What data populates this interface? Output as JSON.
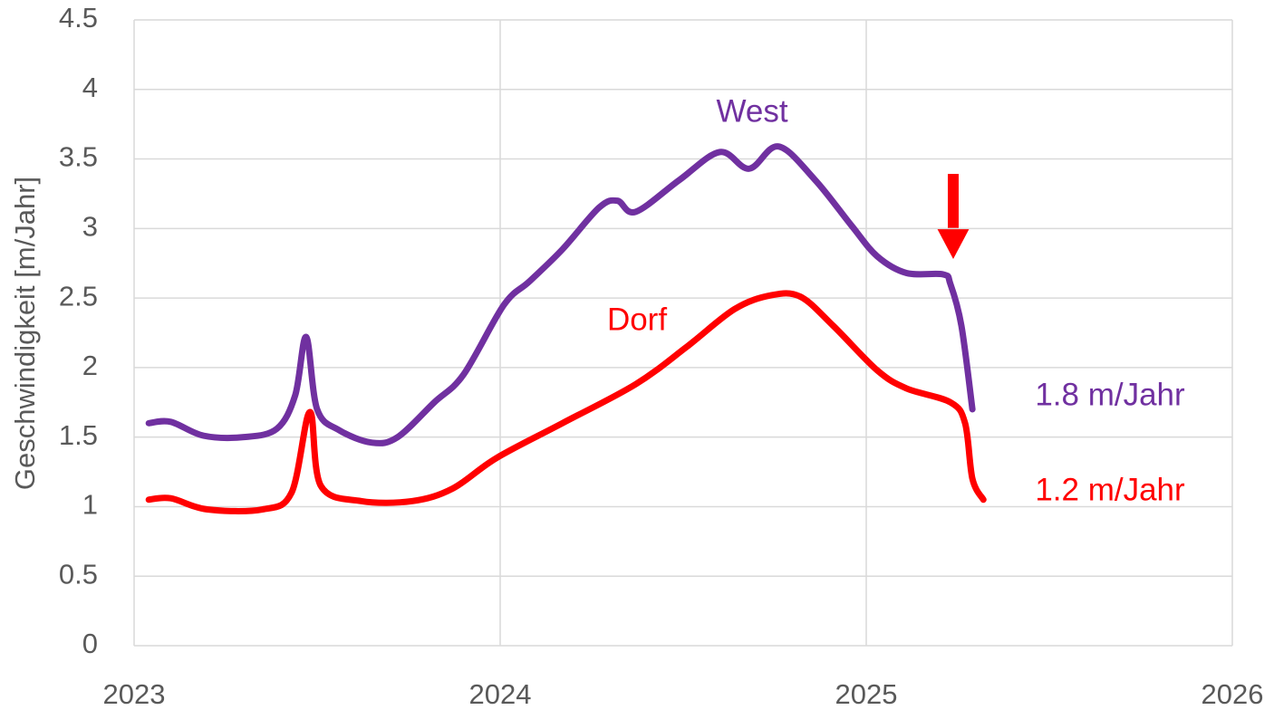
{
  "chart_data": {
    "type": "line",
    "y_label": "Geschwindigkeit [m/Jahr]",
    "xlim": [
      2023,
      2026
    ],
    "xticks": [
      2023,
      2024,
      2025,
      2026
    ],
    "ylim": [
      0,
      4.5
    ],
    "yticks": [
      0,
      0.5,
      1,
      1.5,
      2,
      2.5,
      3,
      3.5,
      4,
      4.5
    ],
    "grid": true,
    "series": [
      {
        "name": "West",
        "color": "#7030a0",
        "x": [
          2023.04,
          2023.1,
          2023.19,
          2023.3,
          2023.39,
          2023.44,
          2023.47,
          2023.5,
          2023.56,
          2023.65,
          2023.72,
          2023.82,
          2023.9,
          2024.01,
          2024.08,
          2024.17,
          2024.27,
          2024.32,
          2024.37,
          2024.49,
          2024.6,
          2024.68,
          2024.76,
          2024.86,
          2024.96,
          2025.03,
          2025.11,
          2025.21,
          2025.23,
          2025.26,
          2025.29
        ],
        "values": [
          1.6,
          1.61,
          1.51,
          1.5,
          1.56,
          1.8,
          2.22,
          1.7,
          1.55,
          1.46,
          1.5,
          1.75,
          1.95,
          2.45,
          2.62,
          2.85,
          3.15,
          3.2,
          3.12,
          3.35,
          3.55,
          3.43,
          3.59,
          3.35,
          3.02,
          2.8,
          2.68,
          2.67,
          2.6,
          2.3,
          1.7
        ]
      },
      {
        "name": "Dorf",
        "color": "#ff0000",
        "x": [
          2023.04,
          2023.1,
          2023.2,
          2023.35,
          2023.43,
          2023.48,
          2023.51,
          2023.62,
          2023.76,
          2023.87,
          2023.99,
          2024.17,
          2024.37,
          2024.51,
          2024.64,
          2024.74,
          2024.82,
          2024.91,
          2025.03,
          2025.11,
          2025.23,
          2025.27,
          2025.29,
          2025.32
        ],
        "values": [
          1.05,
          1.06,
          0.98,
          0.98,
          1.1,
          1.68,
          1.15,
          1.04,
          1.04,
          1.13,
          1.35,
          1.6,
          1.88,
          2.15,
          2.42,
          2.52,
          2.51,
          2.3,
          1.98,
          1.85,
          1.75,
          1.6,
          1.2,
          1.05
        ]
      }
    ],
    "annotations": [
      {
        "text": "1.8 m/Jahr",
        "color": "#7030a0"
      },
      {
        "text": "1.2 m/Jahr",
        "color": "#ff0000"
      }
    ]
  }
}
